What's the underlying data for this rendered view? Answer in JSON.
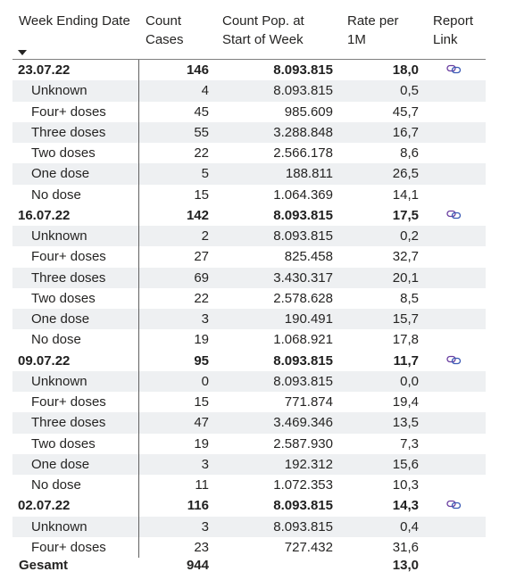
{
  "header": {
    "week_label": "Week Ending Date",
    "cases_line1": "Count",
    "cases_line2": "Cases",
    "pop_line1": "Count Pop. at",
    "pop_line2": "Start of Week",
    "rate_line1": "Rate per",
    "rate_line2": "1M",
    "link_line1": "Report",
    "link_line2": "Link"
  },
  "link_icon_name": "link-icon",
  "rows": [
    {
      "type": "group",
      "name": "23.07.22",
      "cases": "146",
      "pop": "8.093.815",
      "rate": "18,0",
      "link": true
    },
    {
      "type": "sub",
      "name": "Unknown",
      "cases": "4",
      "pop": "8.093.815",
      "rate": "0,5"
    },
    {
      "type": "sub",
      "name": "Four+ doses",
      "cases": "45",
      "pop": "985.609",
      "rate": "45,7"
    },
    {
      "type": "sub",
      "name": "Three doses",
      "cases": "55",
      "pop": "3.288.848",
      "rate": "16,7"
    },
    {
      "type": "sub",
      "name": "Two doses",
      "cases": "22",
      "pop": "2.566.178",
      "rate": "8,6"
    },
    {
      "type": "sub",
      "name": "One dose",
      "cases": "5",
      "pop": "188.811",
      "rate": "26,5"
    },
    {
      "type": "sub",
      "name": "No dose",
      "cases": "15",
      "pop": "1.064.369",
      "rate": "14,1"
    },
    {
      "type": "group",
      "name": "16.07.22",
      "cases": "142",
      "pop": "8.093.815",
      "rate": "17,5",
      "link": true
    },
    {
      "type": "sub",
      "name": "Unknown",
      "cases": "2",
      "pop": "8.093.815",
      "rate": "0,2"
    },
    {
      "type": "sub",
      "name": "Four+ doses",
      "cases": "27",
      "pop": "825.458",
      "rate": "32,7"
    },
    {
      "type": "sub",
      "name": "Three doses",
      "cases": "69",
      "pop": "3.430.317",
      "rate": "20,1"
    },
    {
      "type": "sub",
      "name": "Two doses",
      "cases": "22",
      "pop": "2.578.628",
      "rate": "8,5"
    },
    {
      "type": "sub",
      "name": "One dose",
      "cases": "3",
      "pop": "190.491",
      "rate": "15,7"
    },
    {
      "type": "sub",
      "name": "No dose",
      "cases": "19",
      "pop": "1.068.921",
      "rate": "17,8"
    },
    {
      "type": "group",
      "name": "09.07.22",
      "cases": "95",
      "pop": "8.093.815",
      "rate": "11,7",
      "link": true
    },
    {
      "type": "sub",
      "name": "Unknown",
      "cases": "0",
      "pop": "8.093.815",
      "rate": "0,0"
    },
    {
      "type": "sub",
      "name": "Four+ doses",
      "cases": "15",
      "pop": "771.874",
      "rate": "19,4"
    },
    {
      "type": "sub",
      "name": "Three doses",
      "cases": "47",
      "pop": "3.469.346",
      "rate": "13,5"
    },
    {
      "type": "sub",
      "name": "Two doses",
      "cases": "19",
      "pop": "2.587.930",
      "rate": "7,3"
    },
    {
      "type": "sub",
      "name": "One dose",
      "cases": "3",
      "pop": "192.312",
      "rate": "15,6"
    },
    {
      "type": "sub",
      "name": "No dose",
      "cases": "11",
      "pop": "1.072.353",
      "rate": "10,3"
    },
    {
      "type": "group",
      "name": "02.07.22",
      "cases": "116",
      "pop": "8.093.815",
      "rate": "14,3",
      "link": true
    },
    {
      "type": "sub",
      "name": "Unknown",
      "cases": "3",
      "pop": "8.093.815",
      "rate": "0,4"
    },
    {
      "type": "sub",
      "name": "Four+ doses",
      "cases": "23",
      "pop": "727.432",
      "rate": "31,6"
    }
  ],
  "total": {
    "label": "Gesamt",
    "cases": "944",
    "pop": "",
    "rate": "13,0"
  }
}
